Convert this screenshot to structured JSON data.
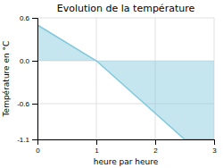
{
  "chart_data": {
    "type": "area",
    "title": "Evolution de la température",
    "xlabel": "heure par heure",
    "ylabel": "Température en °C",
    "x": [
      0,
      1,
      2.5,
      3
    ],
    "values": [
      0.5,
      0.0,
      -1.1,
      -1.1
    ],
    "color": "#7fc8dc",
    "xlim": [
      0,
      3
    ],
    "ylim": [
      -1.1,
      0.6
    ],
    "xticks": [
      0,
      1,
      2,
      3
    ],
    "yticks": [
      -1.1,
      -0.6,
      {
        "value": 0,
        "label": "0.0"
      },
      0.6
    ],
    "grid": true
  }
}
